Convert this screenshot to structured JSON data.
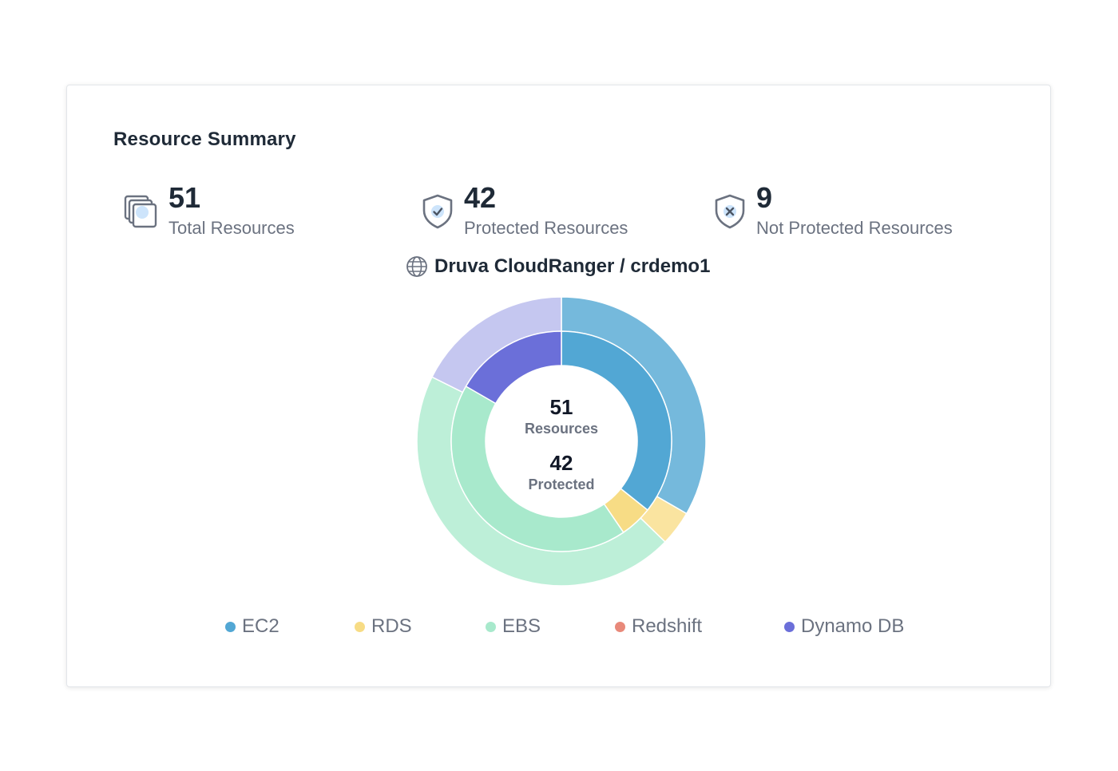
{
  "card": {
    "title": "Resource Summary"
  },
  "stats": {
    "total": {
      "value": "51",
      "label": "Total Resources",
      "icon": "stacked-copies-icon"
    },
    "protected": {
      "value": "42",
      "label": "Protected Resources",
      "icon": "shield-check-icon"
    },
    "not_protected": {
      "value": "9",
      "label": "Not Protected Resources",
      "icon": "shield-x-icon"
    }
  },
  "account": {
    "name": "Druva CloudRanger / crdemo1",
    "icon": "globe-icon"
  },
  "chart_data": {
    "type": "pie",
    "subtype": "nested-donut",
    "center": {
      "total_value": "51",
      "total_label": "Resources",
      "protected_value": "42",
      "protected_label": "Protected"
    },
    "categories": [
      "EC2",
      "RDS",
      "EBS",
      "Redshift",
      "Dynamo DB"
    ],
    "colors": {
      "EC2": "#52a7d4",
      "RDS": "#f7dc85",
      "EBS": "#a8e9cc",
      "Redshift": "#e8897a",
      "Dynamo DB": "#6b6fd9"
    },
    "outer_colors": {
      "EC2": "#75b9dc",
      "RDS": "#fae4a0",
      "EBS": "#bdefd8",
      "Redshift": "#efa598",
      "Dynamo DB": "#c5c7f0"
    },
    "series": [
      {
        "name": "Resources",
        "values": [
          17,
          2,
          23,
          0,
          9
        ]
      },
      {
        "name": "Protected",
        "values": [
          15,
          2,
          18,
          0,
          7
        ]
      }
    ],
    "legend_position": "bottom"
  }
}
